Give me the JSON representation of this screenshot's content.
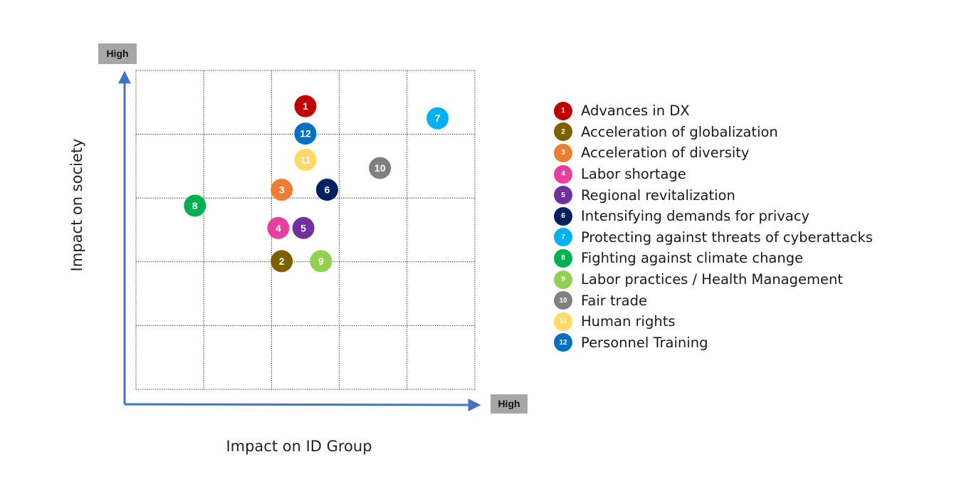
{
  "chart_data": {
    "type": "scatter",
    "xlabel": "Impact on ID Group",
    "ylabel": "Impact on society",
    "x_high_label": "High",
    "y_high_label": "High",
    "xlim": [
      0,
      5
    ],
    "ylim": [
      0,
      5
    ],
    "grid": true,
    "legend_position": "right",
    "points": [
      {
        "id": "1",
        "x": 2.5,
        "y": 4.44,
        "color": "#c00000",
        "label": "Advances in DX"
      },
      {
        "id": "2",
        "x": 2.15,
        "y": 2.01,
        "color": "#7f5f00",
        "label": "Acceleration of globalization"
      },
      {
        "id": "3",
        "x": 2.15,
        "y": 3.13,
        "color": "#ed7d31",
        "label": "Acceleration of diversity"
      },
      {
        "id": "4",
        "x": 2.1,
        "y": 2.53,
        "color": "#e83e9e",
        "label": "Labor shortage"
      },
      {
        "id": "5",
        "x": 2.47,
        "y": 2.53,
        "color": "#7030a0",
        "label": "Regional revitalization"
      },
      {
        "id": "6",
        "x": 2.82,
        "y": 3.13,
        "color": "#002060",
        "label": "Intensifying demands for privacy"
      },
      {
        "id": "7",
        "x": 4.45,
        "y": 4.25,
        "color": "#00b0f0",
        "label": "Protecting against threats of cyberattacks"
      },
      {
        "id": "8",
        "x": 0.87,
        "y": 2.88,
        "color": "#00b050",
        "label": "Fighting against climate change"
      },
      {
        "id": "9",
        "x": 2.73,
        "y": 2.01,
        "color": "#92d050",
        "label": "Labor practices / Health Management"
      },
      {
        "id": "10",
        "x": 3.6,
        "y": 3.47,
        "color": "#808080",
        "label": "Fair trade"
      },
      {
        "id": "11",
        "x": 2.5,
        "y": 3.6,
        "color": "#ffd966",
        "label": "Human rights"
      },
      {
        "id": "12",
        "x": 2.5,
        "y": 4.01,
        "color": "#0070c0",
        "label": "Personnel Training"
      }
    ]
  }
}
